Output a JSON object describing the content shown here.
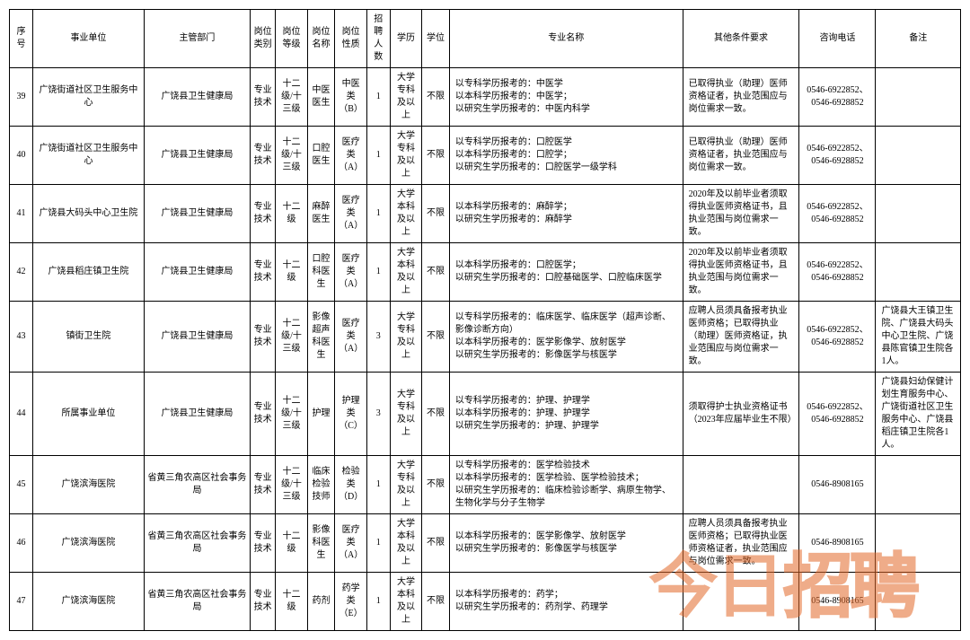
{
  "headers": [
    "序号",
    "事业单位",
    "主管部门",
    "岗位类别",
    "岗位等级",
    "岗位名称",
    "岗位性质",
    "招聘人数",
    "学历",
    "学位",
    "专业名称",
    "其他条件要求",
    "咨询电话",
    "备注"
  ],
  "rows": [
    {
      "seq": "39",
      "unit": "广饶街道社区卫生服务中心",
      "dept": "广饶县卫生健康局",
      "cat": "专业技术",
      "grade": "十二级/十三级",
      "name": "中医医生",
      "nat": "中医类（B）",
      "num": "1",
      "edu": "大学专科及以上",
      "deg": "不限",
      "major": "以专科学历报考的：中医学\n以本科学历报考的：中医学；\n以研究生学历报考的：中医内科学",
      "other": "已取得执业（助理）医师资格证者，执业范围应与岗位需求一致。",
      "phone": "0546-6922852、0546-6928852",
      "note": ""
    },
    {
      "seq": "40",
      "unit": "广饶街道社区卫生服务中心",
      "dept": "广饶县卫生健康局",
      "cat": "专业技术",
      "grade": "十二级/十三级",
      "name": "口腔医生",
      "nat": "医疗类（A）",
      "num": "1",
      "edu": "大学专科及以上",
      "deg": "不限",
      "major": "以专科学历报考的：口腔医学\n以本科学历报考的：口腔学；\n以研究生学历报考的：口腔医学一级学科",
      "other": "已取得执业（助理）医师资格证者，执业范围应与岗位需求一致。",
      "phone": "0546-6922852、0546-6928852",
      "note": ""
    },
    {
      "seq": "41",
      "unit": "广饶县大码头中心卫生院",
      "dept": "广饶县卫生健康局",
      "cat": "专业技术",
      "grade": "十二级",
      "name": "麻醉医生",
      "nat": "医疗类（A）",
      "num": "1",
      "edu": "大学本科及以上",
      "deg": "不限",
      "major": "以本科学历报考的：麻醉学；\n以研究生学历报考的：麻醉学",
      "other": "2020年及以前毕业者须取得执业医师资格证书，且执业范围与岗位需求一致。",
      "phone": "0546-6922852、0546-6928852",
      "note": ""
    },
    {
      "seq": "42",
      "unit": "广饶县稻庄镇卫生院",
      "dept": "广饶县卫生健康局",
      "cat": "专业技术",
      "grade": "十二级",
      "name": "口腔科医生",
      "nat": "医疗类（A）",
      "num": "1",
      "edu": "大学本科及以上",
      "deg": "不限",
      "major": "以本科学历报考的：口腔医学；\n以研究生学历报考的：口腔基础医学、口腔临床医学",
      "other": "2020年及以前毕业者须取得执业医师资格证书，且执业范围与岗位需求一致。",
      "phone": "0546-6922852、0546-6928852",
      "note": ""
    },
    {
      "seq": "43",
      "unit": "镇街卫生院",
      "dept": "广饶县卫生健康局",
      "cat": "专业技术",
      "grade": "十二级/十三级",
      "name": "影像超声科医生",
      "nat": "医疗类（A）",
      "num": "3",
      "edu": "大学专科及以上",
      "deg": "不限",
      "major": "以专科学历报考的：临床医学、临床医学（超声诊断、影像诊断方向）\n以本科学历报考的：医学影像学、放射医学\n以研究生学历报考的：影像医学与核医学",
      "other": "应聘人员须具备报考执业医师资格；已取得执业（助理）医师资格证，执业范围应与岗位需求一致。",
      "phone": "0546-6922852、0546-6928852",
      "note": "广饶县大王镇卫生院、广饶县大码头中心卫生院、广饶县陈官镇卫生院各1人。"
    },
    {
      "seq": "44",
      "unit": "所属事业单位",
      "dept": "广饶县卫生健康局",
      "cat": "专业技术",
      "grade": "十二级/十三级",
      "name": "护理",
      "nat": "护理类（C）",
      "num": "3",
      "edu": "大学专科及以上",
      "deg": "不限",
      "major": "以专科学历报考的：护理、护理学\n以本科学历报考的：护理、护理学\n以研究生学历报考的：护理、护理学",
      "other": "须取得护士执业资格证书（2023年应届毕业生不限）",
      "phone": "0546-6922852、0546-6928852",
      "note": "广饶县妇幼保健计划生育服务中心、广饶街道社区卫生服务中心、广饶县稻庄镇卫生院各1人。"
    },
    {
      "seq": "45",
      "unit": "广饶滨海医院",
      "dept": "省黄三角农高区社会事务局",
      "cat": "专业技术",
      "grade": "十二级/十三级",
      "name": "临床检验技师",
      "nat": "检验类（D）",
      "num": "1",
      "edu": "大学专科及以上",
      "deg": "不限",
      "major": "以专科学历报考的：医学检验技术\n以本科学历报考的：医学检验、医学检验技术；\n以研究生学历报考的：临床检验诊断学、病原生物学、生物化学与分子生物学",
      "other": "",
      "phone": "0546-8908165",
      "note": ""
    },
    {
      "seq": "46",
      "unit": "广饶滨海医院",
      "dept": "省黄三角农高区社会事务局",
      "cat": "专业技术",
      "grade": "十二级",
      "name": "影像科医生",
      "nat": "医疗类（A）",
      "num": "1",
      "edu": "大学本科及以上",
      "deg": "不限",
      "major": "以本科学历报考的：医学影像学、放射医学\n以研究生学历报考的：影像医学与核医学",
      "other": "应聘人员须具备报考执业医师资格；已取得执业医师资格证者，执业范围应与岗位需求一致。",
      "phone": "0546-8908165",
      "note": ""
    },
    {
      "seq": "47",
      "unit": "广饶滨海医院",
      "dept": "省黄三角农高区社会事务局",
      "cat": "专业技术",
      "grade": "十二级",
      "name": "药剂",
      "nat": "药学类（E）",
      "num": "1",
      "edu": "大学本科及以上",
      "deg": "不限",
      "major": "以本科学历报考的：药学；\n以研究生学历报考的：药剂学、药理学",
      "other": "",
      "phone": "0546-8908165",
      "note": ""
    }
  ],
  "watermark": {
    "part1": "今日",
    "part2": "招聘"
  }
}
